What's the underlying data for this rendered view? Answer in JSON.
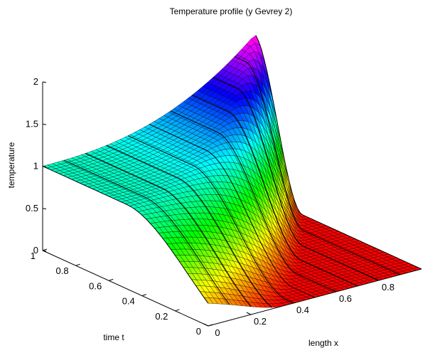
{
  "chart_data": {
    "type": "surface",
    "title": "Temperature profile (y Gevrey 2)",
    "xlabel": "length x",
    "ylabel": "time t",
    "zlabel": "temperature",
    "xlim": [
      0,
      1
    ],
    "ylim": [
      0,
      1
    ],
    "zlim": [
      0,
      2
    ],
    "x_ticks": [
      "0",
      "0.2",
      "0.4",
      "0.6",
      "0.8"
    ],
    "y_ticks": [
      "0",
      "0.2",
      "0.4",
      "0.6",
      "0.8",
      "1"
    ],
    "z_ticks": [
      "0",
      "0.5",
      "1",
      "1.5",
      "2"
    ],
    "colormap": "hsv",
    "grid_lines": true,
    "surface": {
      "x_samples": [
        0,
        0.1,
        0.2,
        0.3,
        0.4,
        0.5,
        0.6,
        0.7,
        0.8,
        0.9,
        1.0
      ],
      "t_samples": [
        0,
        0.1,
        0.2,
        0.3,
        0.4,
        0.5,
        0.6,
        0.7,
        0.8,
        0.9,
        1.0
      ],
      "temperature_at_x0": [
        0,
        0.02,
        0.1,
        0.25,
        0.45,
        0.65,
        0.8,
        0.9,
        0.96,
        0.99,
        1.0
      ],
      "peak_temperature": 1.9,
      "peak_location": {
        "x": 0.9,
        "t": 1.0
      }
    }
  }
}
